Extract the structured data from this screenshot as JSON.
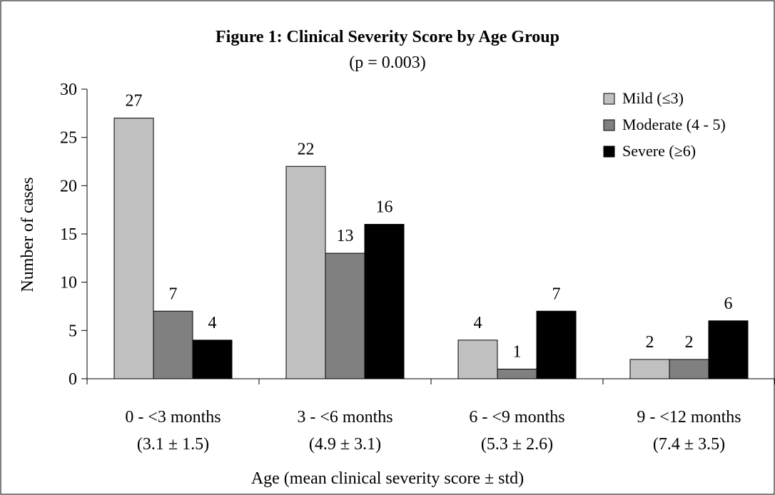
{
  "chart_data": {
    "type": "bar",
    "title": "Figure 1: Clinical Severity Score by Age Group",
    "subtitle": "(p = 0.003)",
    "xlabel": "Age (mean clinical severity score ± std)",
    "ylabel": "Number of cases",
    "ylim": [
      0,
      30
    ],
    "yticks": [
      "0",
      "5",
      "10",
      "15",
      "20",
      "25",
      "30"
    ],
    "categories": [
      {
        "line1": "0 - <3 months",
        "line2": "(3.1 ± 1.5)"
      },
      {
        "line1": "3 - <6 months",
        "line2": "(4.9 ± 3.1)"
      },
      {
        "line1": "6 - <9 months",
        "line2": "(5.3 ± 2.6)"
      },
      {
        "line1": "9 - <12 months",
        "line2": "(7.4 ± 3.5)"
      }
    ],
    "series": [
      {
        "name": "Mild (≤3)",
        "color": "#c0c0c0",
        "values": [
          27,
          22,
          4,
          2
        ]
      },
      {
        "name": "Moderate (4 - 5)",
        "color": "#808080",
        "values": [
          7,
          13,
          1,
          2
        ]
      },
      {
        "name": "Severe (≥6)",
        "color": "#000000",
        "values": [
          4,
          16,
          7,
          6
        ]
      }
    ],
    "legend_position": "top-right",
    "grid": false
  }
}
